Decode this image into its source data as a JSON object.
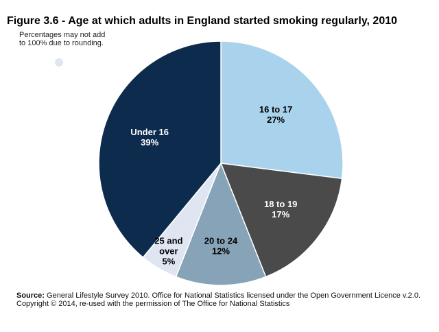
{
  "title": "Figure 3.6 - Age at which adults in England started smoking regularly, 2010",
  "note": "Percentages may not add to 100% due to rounding.",
  "footer": {
    "source_label": "Source:",
    "source_text": " General Lifestyle Survey 2010. Office for National Statistics licensed under the Open Government Licence v.2.0.",
    "copyright": "Copyright © 2014, re-used with the permission of The Office for National Statistics"
  },
  "chart_data": {
    "type": "pie",
    "title": "Figure 3.6 - Age at which adults in England started smoking regularly, 2010",
    "slices": [
      {
        "label": "16 to 17",
        "value": 27,
        "color": "#a9d3ec",
        "text_color": "#000000"
      },
      {
        "label": "18 to 19",
        "value": 17,
        "color": "#4a4a4a",
        "text_color": "#ffffff"
      },
      {
        "label": "20 to 24",
        "value": 12,
        "color": "#86a3b7",
        "text_color": "#000000"
      },
      {
        "label": "25 and over",
        "value": 5,
        "color": "#dfe6f1",
        "text_color": "#000000"
      },
      {
        "label": "Under 16",
        "value": 39,
        "color": "#0d2b4d",
        "text_color": "#ffffff"
      }
    ],
    "unit": "%"
  }
}
